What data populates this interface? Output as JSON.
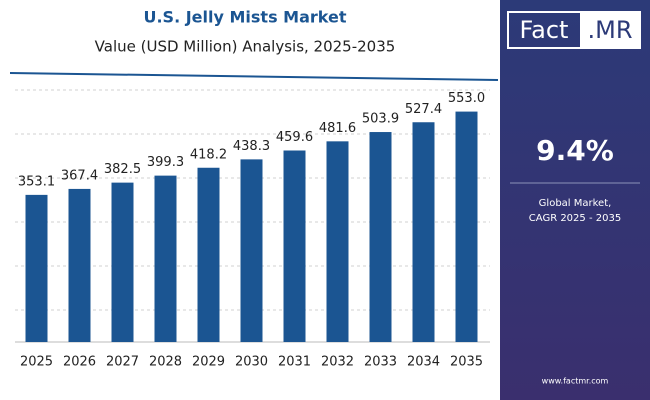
{
  "chart_data": {
    "type": "bar",
    "title": "U.S. Jelly Mists Market",
    "subtitle": "Value (USD Million) Analysis, 2025-2035",
    "categories": [
      "2025",
      "2026",
      "2027",
      "2028",
      "2029",
      "2030",
      "2031",
      "2032",
      "2033",
      "2034",
      "2035"
    ],
    "values": [
      353.1,
      367.4,
      382.5,
      399.3,
      418.2,
      438.3,
      459.6,
      481.6,
      503.9,
      527.4,
      553.0
    ],
    "value_labels": [
      "353.1",
      "367.4",
      "382.5",
      "399.3",
      "418.2",
      "438.3",
      "459.6",
      "481.6",
      "503.9",
      "527.4",
      "553.0"
    ],
    "color": "#1b5592",
    "ylim": [
      0,
      600
    ]
  },
  "panel": {
    "brand_left": "Fact",
    "brand_right": ".MR",
    "cagr": "9.4%",
    "cagr_label_1": "Global Market,",
    "cagr_label_2": "CAGR 2025 - 2035",
    "website": "www.factmr.com"
  }
}
